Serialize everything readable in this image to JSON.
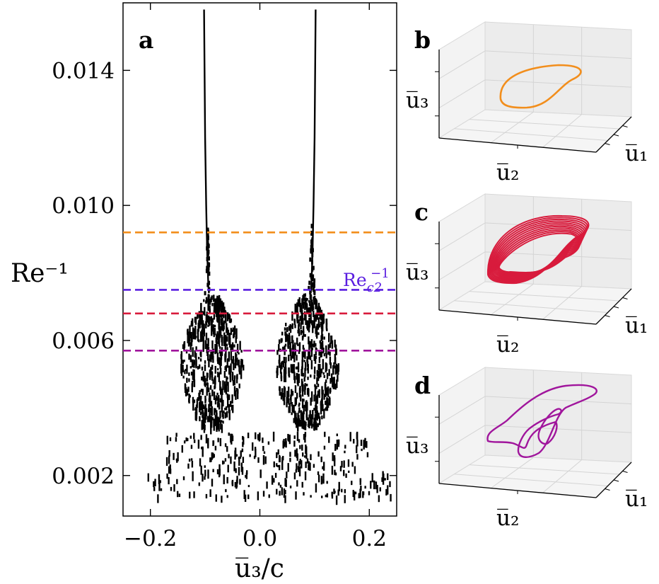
{
  "chart_data": [
    {
      "type": "scatter",
      "panel_label": "a",
      "xlabel": "u̅₃/c",
      "ylabel": "Re⁻¹",
      "xlim": [
        -0.25,
        0.25
      ],
      "ylim": [
        0.0008,
        0.016
      ],
      "x_ticks": [
        -0.2,
        0.0,
        0.2
      ],
      "x_tick_labels": [
        "−0.2",
        "0.0",
        "0.2"
      ],
      "y_ticks": [
        0.002,
        0.006,
        0.01,
        0.014
      ],
      "y_tick_labels": [
        "0.002",
        "0.006",
        "0.010",
        "0.014"
      ],
      "grid": false,
      "branches": [
        {
          "x": [
            -0.102,
            -0.101,
            -0.1,
            -0.098,
            -0.097,
            -0.096,
            -0.095,
            -0.094,
            -0.093
          ],
          "y": [
            0.0158,
            0.014,
            0.012,
            0.01,
            0.0092,
            0.0085,
            0.008,
            0.0076,
            0.0074
          ]
        },
        {
          "x": [
            0.102,
            0.101,
            0.1,
            0.098,
            0.097,
            0.096,
            0.095,
            0.094,
            0.093
          ],
          "y": [
            0.0158,
            0.014,
            0.012,
            0.01,
            0.0092,
            0.0085,
            0.008,
            0.0076,
            0.0074
          ]
        }
      ],
      "chaotic_band": {
        "y_range": [
          0.0035,
          0.0074
        ],
        "x_extent_left": [
          -0.13,
          -0.04
        ],
        "x_extent_right": [
          0.04,
          0.13
        ]
      },
      "low_band": {
        "y_range": [
          0.0014,
          0.0033
        ],
        "x_range": [
          -0.22,
          0.24
        ]
      },
      "reference_lines": [
        {
          "name": "orange",
          "y": 0.0092,
          "color": "#f28e1c"
        },
        {
          "name": "Re_c2^-1",
          "label": "Re",
          "label_sub": "c2",
          "label_sup": "−1",
          "y": 0.0075,
          "color": "#5a1ee0"
        },
        {
          "name": "red",
          "y": 0.0068,
          "color": "#d81b3c"
        },
        {
          "name": "purple",
          "y": 0.0057,
          "color": "#a0159c"
        }
      ]
    },
    {
      "type": "line",
      "panel_label": "b",
      "projection": "3d",
      "xlabel": "u̅₂",
      "ylabel": "u̅₁",
      "zlabel": "u̅₃",
      "color": "#f28e1c",
      "trajectory": "single closed loop"
    },
    {
      "type": "line",
      "panel_label": "c",
      "projection": "3d",
      "xlabel": "u̅₂",
      "ylabel": "u̅₁",
      "zlabel": "u̅₃",
      "color": "#d81b3c",
      "trajectory": "many nested loops"
    },
    {
      "type": "line",
      "panel_label": "d",
      "projection": "3d",
      "xlabel": "u̅₂",
      "ylabel": "u̅₁",
      "zlabel": "u̅₃",
      "color": "#a0159c",
      "trajectory": "period-doubled loop"
    }
  ]
}
